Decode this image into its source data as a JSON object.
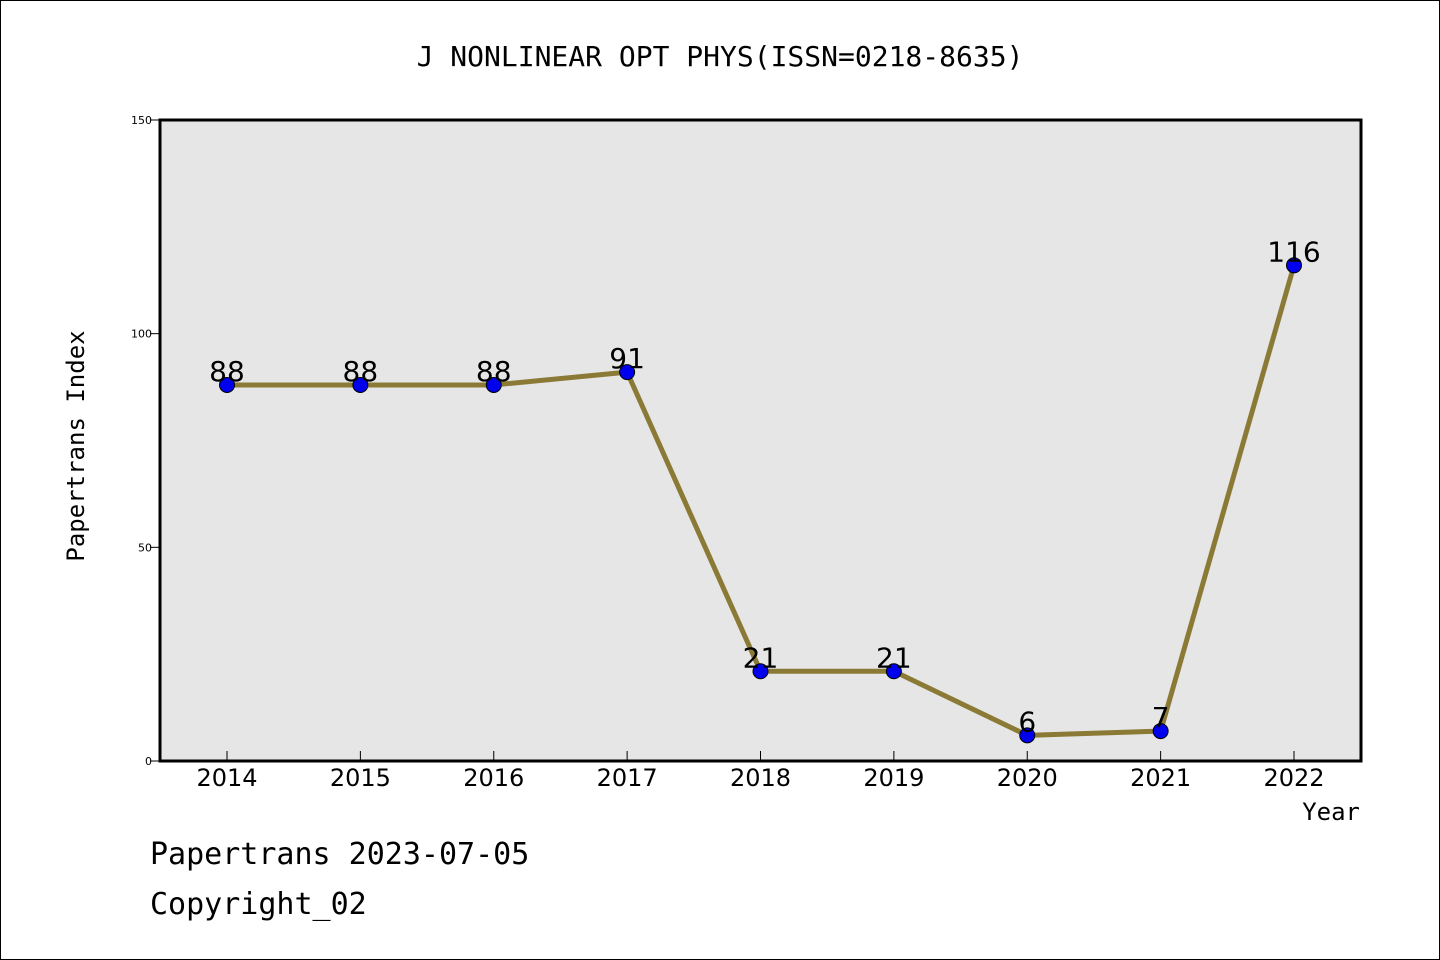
{
  "chart_data": {
    "type": "line",
    "title": "J NONLINEAR OPT PHYS(ISSN=0218-8635)",
    "xlabel": "Year",
    "ylabel": "Papertrans Index",
    "categories": [
      "2014",
      "2015",
      "2016",
      "2017",
      "2018",
      "2019",
      "2020",
      "2021",
      "2022"
    ],
    "values": [
      88,
      88,
      88,
      91,
      21,
      21,
      6,
      7,
      116
    ],
    "ylim": [
      0,
      150
    ],
    "y_ticks": [
      0,
      50,
      100,
      150
    ],
    "data_labels": [
      "88",
      "88",
      "88",
      "91",
      "21",
      "21",
      "6",
      "7",
      "116"
    ],
    "grid": false,
    "line_color": "#8b7a35",
    "marker_color": "#0000ee",
    "plot_background": "#e6e6e6"
  },
  "footer": {
    "line1": "Papertrans 2023-07-05",
    "line2": "Copyright_02"
  }
}
